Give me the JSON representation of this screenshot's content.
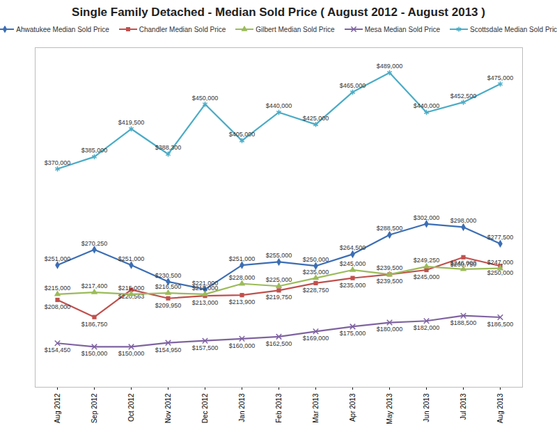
{
  "chart_data": {
    "type": "line",
    "title": "Single Family Detached - Median Sold Price ( August 2012 - August 2013 )",
    "categories": [
      "Aug 2012",
      "Sep 2012",
      "Oct 2012",
      "Nov 2012",
      "Dec 2012",
      "Jan 2013",
      "Feb 2013",
      "Mar 2013",
      "Apr 2013",
      "May 2013",
      "Jun 2013",
      "Jul 2013",
      "Aug 2013"
    ],
    "ylim": [
      100000,
      520000
    ],
    "yticks": [],
    "grid": false,
    "legend": "top",
    "tick_labels": "x",
    "data_labels": true,
    "series": [
      {
        "name": "Ahwatukee Median Sold Price",
        "color": "#3c6eb4",
        "marker": "diamond",
        "values": [
          251000,
          270250,
          251000,
          230500,
          221000,
          251000,
          255000,
          250000,
          264500,
          288500,
          302000,
          298000,
          277500
        ],
        "value_labels": [
          "$251,000",
          "$270,250",
          "$251,000",
          "$230,500",
          "$221,000",
          "$251,000",
          "$255,000",
          "$250,000",
          "$264,500",
          "$288,500",
          "$302,000",
          "$298,000",
          "$277,500"
        ]
      },
      {
        "name": "Chandler Median Sold Price",
        "color": "#c0504d",
        "marker": "square",
        "values": [
          208000,
          186750,
          220563,
          209950,
          213000,
          213900,
          219750,
          228750,
          235000,
          239500,
          245000,
          260750,
          250000
        ],
        "value_labels": [
          "$208,000",
          "$186,750",
          "$220,563",
          "$209,950",
          "$213,000",
          "$213,900",
          "$219,750",
          "$228,750",
          "$235,000",
          "$239,500",
          "$245,000",
          "$260,750",
          "$250,000"
        ]
      },
      {
        "name": "Gilbert Median Sold Price",
        "color": "#9bbb59",
        "marker": "triangle",
        "values": [
          215000,
          217400,
          215000,
          216500,
          215000,
          228000,
          225000,
          235000,
          245000,
          239500,
          249250,
          246000,
          247000
        ],
        "value_labels": [
          "$215,000",
          "$217,400",
          "$215,000",
          "$216,500",
          "$215,000",
          "$228,000",
          "$225,000",
          "$235,000",
          "$245,000",
          "$239,500",
          "$249,250",
          "$246,000",
          "$247,000"
        ]
      },
      {
        "name": "Mesa Median Sold Price",
        "color": "#7f63a1",
        "marker": "times",
        "values": [
          154450,
          150000,
          150000,
          154950,
          157500,
          160000,
          162500,
          169000,
          175000,
          180000,
          182000,
          188500,
          186500
        ],
        "value_labels": [
          "$154,450",
          "$150,000",
          "$150,000",
          "$154,950",
          "$157,500",
          "$160,000",
          "$162,500",
          "$169,000",
          "$175,000",
          "$180,000",
          "$182,000",
          "$188,500",
          "$186,500"
        ]
      },
      {
        "name": "Scottsdale Median Sold Price",
        "color": "#4bacc6",
        "marker": "asterisk",
        "values": [
          370000,
          385000,
          419500,
          388300,
          450000,
          405000,
          440000,
          425000,
          465000,
          489000,
          440000,
          452500,
          475000
        ],
        "value_labels": [
          "$370,000",
          "$385,000",
          "$419,500",
          "$388,300",
          "$450,000",
          "$405,000",
          "$440,000",
          "$425,000",
          "$465,000",
          "$489,000",
          "$440,000",
          "$452,500",
          "$475,000"
        ]
      }
    ]
  }
}
